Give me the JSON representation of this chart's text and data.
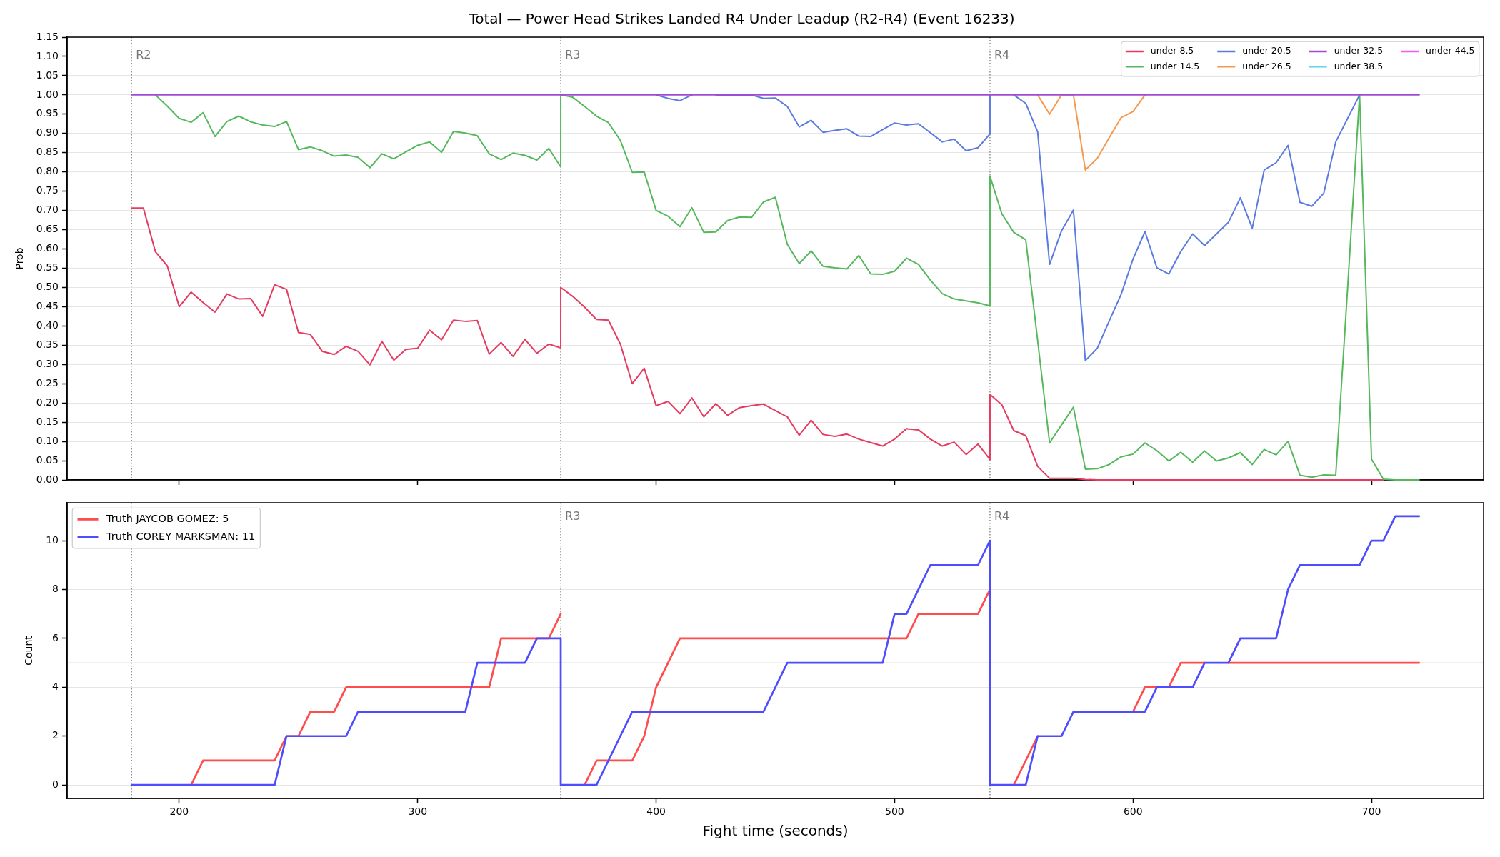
{
  "chart_data": [
    {
      "type": "line",
      "title": "Total — Power Head Strikes Landed R4 Under Leadup (R2-R4) (Event 16233)",
      "ylabel": "Prob",
      "x": [
        180,
        185,
        190,
        195,
        200,
        205,
        210,
        215,
        220,
        225,
        230,
        235,
        240,
        245,
        250,
        255,
        260,
        265,
        270,
        275,
        280,
        285,
        290,
        295,
        300,
        305,
        310,
        315,
        320,
        325,
        330,
        335,
        340,
        345,
        350,
        355,
        360,
        360,
        365,
        370,
        375,
        380,
        385,
        390,
        395,
        400,
        405,
        410,
        415,
        420,
        425,
        430,
        435,
        440,
        445,
        450,
        455,
        460,
        465,
        470,
        475,
        480,
        485,
        490,
        495,
        500,
        505,
        510,
        515,
        520,
        525,
        530,
        535,
        540,
        540,
        545,
        550,
        555,
        560,
        565,
        570,
        575,
        580,
        585,
        590,
        595,
        600,
        605,
        610,
        615,
        620,
        625,
        630,
        635,
        640,
        645,
        650,
        655,
        660,
        665,
        670,
        675,
        680,
        685,
        690,
        695,
        700,
        705,
        710,
        715,
        720
      ],
      "series": [
        {
          "name": "under 8.5",
          "color": "#e63b60",
          "values": [
            0.706,
            0.706,
            0.593,
            0.556,
            0.45,
            0.488,
            0.461,
            0.436,
            0.483,
            0.47,
            0.471,
            0.425,
            0.507,
            0.495,
            0.383,
            0.378,
            0.334,
            0.326,
            0.347,
            0.334,
            0.299,
            0.36,
            0.311,
            0.339,
            0.342,
            0.389,
            0.364,
            0.415,
            0.412,
            0.414,
            0.327,
            0.357,
            0.321,
            0.365,
            0.329,
            0.353,
            0.343,
            0.5,
            0.477,
            0.449,
            0.417,
            0.415,
            0.353,
            0.25,
            0.29,
            0.193,
            0.204,
            0.172,
            0.213,
            0.164,
            0.198,
            0.168,
            0.188,
            0.193,
            0.197,
            0.18,
            0.164,
            0.116,
            0.155,
            0.118,
            0.113,
            0.119,
            0.106,
            0.097,
            0.088,
            0.106,
            0.133,
            0.13,
            0.106,
            0.088,
            0.098,
            0.066,
            0.093,
            0.053,
            0.222,
            0.195,
            0.128,
            0.115,
            0.035,
            0.004,
            0.004,
            0.004,
            0.001,
            0,
            0,
            0,
            0,
            0,
            0,
            0,
            0,
            0,
            0,
            0,
            0,
            0,
            0,
            0,
            0,
            0,
            0,
            0,
            0,
            0,
            0,
            0,
            0,
            0,
            null,
            null,
            null
          ]
        },
        {
          "name": "under 14.5",
          "color": "#55b85c",
          "values": [
            null,
            null,
            1,
            0.971,
            0.939,
            0.929,
            0.954,
            0.892,
            0.931,
            0.945,
            0.93,
            0.922,
            0.918,
            0.931,
            0.858,
            0.865,
            0.855,
            0.841,
            0.844,
            0.838,
            0.811,
            0.847,
            0.834,
            0.852,
            0.869,
            0.878,
            0.851,
            0.905,
            0.901,
            0.894,
            0.847,
            0.832,
            0.849,
            0.843,
            0.831,
            0.861,
            0.813,
            1,
            0.994,
            0.97,
            0.945,
            0.928,
            0.882,
            0.799,
            0.8,
            0.7,
            0.685,
            0.658,
            0.707,
            0.643,
            0.644,
            0.674,
            0.683,
            0.682,
            0.722,
            0.734,
            0.612,
            0.562,
            0.595,
            0.555,
            0.551,
            0.548,
            0.583,
            0.535,
            0.534,
            0.542,
            0.576,
            0.56,
            0.519,
            0.484,
            0.47,
            0.465,
            0.46,
            0.452,
            0.789,
            0.691,
            0.643,
            0.624,
            0.362,
            0.096,
            0.143,
            0.189,
            0.028,
            0.029,
            0.04,
            0.06,
            0.067,
            0.096,
            0.076,
            0.049,
            0.072,
            0.046,
            0.075,
            0.049,
            0.057,
            0.071,
            0.04,
            0.079,
            0.065,
            0.1,
            0.012,
            0.007,
            0.013,
            0.012,
            0.5,
            1,
            0.054,
            0.002,
            0,
            0,
            0
          ]
        },
        {
          "name": "under 20.5",
          "color": "#5b7be0",
          "values": [
            null,
            null,
            null,
            null,
            null,
            null,
            null,
            null,
            null,
            null,
            null,
            null,
            null,
            null,
            null,
            null,
            null,
            null,
            null,
            null,
            null,
            null,
            null,
            null,
            null,
            null,
            null,
            null,
            null,
            null,
            null,
            null,
            null,
            null,
            null,
            null,
            null,
            null,
            null,
            null,
            null,
            null,
            null,
            null,
            null,
            1,
            0.991,
            0.985,
            1,
            null,
            1,
            0.998,
            0.998,
            1,
            0.991,
            0.992,
            0.97,
            0.917,
            0.934,
            0.903,
            0.908,
            0.912,
            0.893,
            0.892,
            0.91,
            0.927,
            0.922,
            0.925,
            0.902,
            0.878,
            0.885,
            0.855,
            0.863,
            0.899,
            1,
            null,
            1,
            0.978,
            0.904,
            0.56,
            0.647,
            0.701,
            0.31,
            0.342,
            0.413,
            0.482,
            0.574,
            0.645,
            0.551,
            0.535,
            0.593,
            0.639,
            0.609,
            0.639,
            0.669,
            0.733,
            0.654,
            0.805,
            0.824,
            0.869,
            0.721,
            0.711,
            0.745,
            0.878,
            0.939,
            1,
            null,
            null,
            null,
            null,
            null
          ]
        },
        {
          "name": "under 26.5",
          "color": "#f5994f",
          "values": [
            null,
            null,
            null,
            null,
            null,
            null,
            null,
            null,
            null,
            null,
            null,
            null,
            null,
            null,
            null,
            null,
            null,
            null,
            null,
            null,
            null,
            null,
            null,
            null,
            null,
            null,
            null,
            null,
            null,
            null,
            null,
            null,
            null,
            null,
            null,
            null,
            null,
            null,
            null,
            null,
            null,
            null,
            null,
            null,
            null,
            null,
            null,
            null,
            null,
            null,
            null,
            null,
            null,
            null,
            null,
            null,
            null,
            null,
            null,
            null,
            null,
            null,
            null,
            null,
            null,
            null,
            null,
            null,
            null,
            null,
            null,
            null,
            null,
            null,
            null,
            null,
            null,
            null,
            1,
            0.95,
            1,
            1,
            0.805,
            0.835,
            0.889,
            0.941,
            0.957,
            1,
            null,
            null,
            null,
            null,
            null,
            null,
            null,
            null,
            null,
            null,
            null,
            null,
            null,
            null,
            null,
            null,
            null,
            null,
            null,
            null,
            null,
            null,
            null
          ]
        },
        {
          "name": "under 32.5",
          "color": "#a04bd4",
          "values": [
            1,
            1,
            1,
            1,
            1,
            1,
            1,
            1,
            1,
            1,
            1,
            1,
            1,
            1,
            1,
            1,
            1,
            1,
            1,
            1,
            1,
            1,
            1,
            1,
            1,
            1,
            1,
            1,
            1,
            1,
            1,
            1,
            1,
            1,
            1,
            1,
            1,
            1,
            1,
            1,
            1,
            1,
            1,
            1,
            1,
            1,
            1,
            1,
            1,
            1,
            1,
            1,
            1,
            1,
            1,
            1,
            1,
            1,
            1,
            1,
            1,
            1,
            1,
            1,
            1,
            1,
            1,
            1,
            1,
            1,
            1,
            1,
            1,
            1,
            1,
            1,
            1,
            1,
            1,
            1,
            1,
            1,
            1,
            1,
            1,
            1,
            1,
            1,
            1,
            1,
            1,
            1,
            1,
            1,
            1,
            1,
            1,
            1,
            1,
            1,
            1,
            1,
            1,
            1,
            1,
            1,
            1,
            1,
            1,
            1,
            1
          ]
        },
        {
          "name": "under 38.5",
          "color": "#5fd3ef",
          "values": [
            null,
            null,
            null,
            null,
            null,
            null,
            null,
            null,
            null,
            null,
            null,
            null,
            null,
            null,
            null,
            null,
            null,
            null,
            null,
            null,
            null,
            null,
            null,
            null,
            null,
            null,
            null,
            null,
            null,
            null,
            null,
            null,
            null,
            null,
            null,
            null,
            null,
            null,
            null,
            null,
            null,
            null,
            null,
            null,
            null,
            null,
            null,
            null,
            null,
            null,
            null,
            null,
            null,
            null,
            null,
            null,
            null,
            null,
            null,
            null,
            null,
            null,
            null,
            null,
            null,
            null,
            null,
            null,
            null,
            null,
            null,
            null,
            null,
            null,
            null,
            null,
            null,
            null,
            null,
            null,
            null,
            null,
            null,
            null,
            null,
            null,
            null,
            null,
            null,
            null,
            null,
            null,
            null,
            null,
            null,
            null,
            null,
            null,
            null,
            null,
            null,
            null,
            null,
            null,
            null,
            null,
            null,
            null,
            null,
            null,
            null
          ]
        },
        {
          "name": "under 44.5",
          "color": "#f25cf0",
          "values": [
            null,
            null,
            null,
            null,
            null,
            null,
            null,
            null,
            null,
            null,
            null,
            null,
            null,
            null,
            null,
            null,
            null,
            null,
            null,
            null,
            null,
            null,
            null,
            null,
            null,
            null,
            null,
            null,
            null,
            null,
            null,
            null,
            null,
            null,
            null,
            null,
            null,
            null,
            null,
            null,
            null,
            null,
            null,
            null,
            null,
            null,
            null,
            null,
            null,
            null,
            null,
            null,
            null,
            null,
            null,
            null,
            null,
            null,
            null,
            null,
            null,
            null,
            null,
            null,
            null,
            null,
            null,
            null,
            null,
            null,
            null,
            null,
            null,
            null,
            null,
            null,
            null,
            null,
            null,
            null,
            null,
            null,
            null,
            null,
            null,
            null,
            null,
            null,
            null,
            null,
            null,
            null,
            null,
            null,
            null,
            null,
            null,
            null,
            null,
            null,
            null,
            null,
            null,
            null,
            null,
            null,
            null,
            null,
            null,
            null,
            null
          ]
        }
      ],
      "xlim": [
        153,
        747
      ],
      "xticks": [
        200,
        300,
        400,
        500,
        600,
        700
      ],
      "ylim": [
        0,
        1.15
      ],
      "yticks": [
        {
          "value": 0,
          "label": "0.00"
        },
        {
          "value": 0.05,
          "label": "0.05"
        },
        {
          "value": 0.1,
          "label": "0.10"
        },
        {
          "value": 0.15,
          "label": "0.15"
        },
        {
          "value": 0.2,
          "label": "0.20"
        },
        {
          "value": 0.25,
          "label": "0.25"
        },
        {
          "value": 0.3,
          "label": "0.30"
        },
        {
          "value": 0.35,
          "label": "0.35"
        },
        {
          "value": 0.4,
          "label": "0.40"
        },
        {
          "value": 0.45,
          "label": "0.45"
        },
        {
          "value": 0.5,
          "label": "0.50"
        },
        {
          "value": 0.55,
          "label": "0.55"
        },
        {
          "value": 0.6,
          "label": "0.60"
        },
        {
          "value": 0.65,
          "label": "0.65"
        },
        {
          "value": 0.7,
          "label": "0.70"
        },
        {
          "value": 0.75,
          "label": "0.75"
        },
        {
          "value": 0.8,
          "label": "0.80"
        },
        {
          "value": 0.85,
          "label": "0.85"
        },
        {
          "value": 0.9,
          "label": "0.90"
        },
        {
          "value": 0.95,
          "label": "0.95"
        },
        {
          "value": 1,
          "label": "1.00"
        },
        {
          "value": 1.05,
          "label": "1.05"
        },
        {
          "value": 1.1,
          "label": "1.10"
        },
        {
          "value": 1.15,
          "label": "1.15"
        }
      ],
      "grid": "y",
      "legend": "top right",
      "tick_labels": "y",
      "ref_lines": [
        {
          "axis": "x",
          "value": 180,
          "label": "R2",
          "color": "#777777",
          "line_style": "dotted"
        },
        {
          "axis": "x",
          "value": 360,
          "label": "R3",
          "color": "#777777",
          "line_style": "dotted"
        },
        {
          "axis": "x",
          "value": 540,
          "label": "R4",
          "color": "#777777",
          "line_style": "dotted"
        }
      ]
    },
    {
      "type": "line",
      "xlabel": "Fight time (seconds)",
      "ylabel": "Count",
      "x": [
        180,
        185,
        190,
        195,
        200,
        205,
        210,
        215,
        220,
        225,
        230,
        235,
        240,
        245,
        250,
        255,
        260,
        265,
        270,
        275,
        280,
        285,
        290,
        295,
        300,
        305,
        310,
        315,
        320,
        325,
        330,
        335,
        340,
        345,
        350,
        355,
        360,
        360,
        365,
        370,
        375,
        380,
        385,
        390,
        395,
        400,
        405,
        410,
        415,
        420,
        425,
        430,
        435,
        440,
        445,
        450,
        455,
        460,
        465,
        470,
        475,
        480,
        485,
        490,
        495,
        500,
        505,
        510,
        515,
        520,
        525,
        530,
        535,
        540,
        540,
        545,
        550,
        555,
        560,
        565,
        570,
        575,
        580,
        585,
        590,
        595,
        600,
        605,
        610,
        615,
        620,
        625,
        630,
        635,
        640,
        645,
        650,
        655,
        660,
        665,
        670,
        675,
        680,
        685,
        690,
        695,
        700,
        705,
        710,
        715,
        720
      ],
      "series": [
        {
          "name": "Truth JAYCOB GOMEZ: 5",
          "color": "#ff4d4d",
          "values": [
            null,
            null,
            null,
            null,
            null,
            0,
            1,
            1,
            1,
            1,
            1,
            1,
            1,
            2,
            2,
            3,
            3,
            3,
            4,
            4,
            4,
            4,
            4,
            4,
            4,
            4,
            4,
            4,
            4,
            4,
            4,
            6,
            6,
            6,
            6,
            6,
            7,
            null,
            null,
            0,
            1,
            1,
            1,
            1,
            2,
            4,
            5,
            6,
            6,
            6,
            6,
            6,
            6,
            6,
            6,
            6,
            6,
            6,
            6,
            6,
            6,
            6,
            6,
            6,
            6,
            6,
            6,
            7,
            7,
            7,
            7,
            7,
            7,
            8,
            null,
            null,
            0,
            1,
            2,
            null,
            null,
            null,
            null,
            null,
            null,
            null,
            3,
            4,
            4,
            4,
            5,
            5,
            5,
            null,
            5,
            5,
            5,
            5,
            5,
            5,
            5,
            5,
            5,
            5,
            5,
            5,
            5,
            5,
            5,
            5,
            5
          ]
        },
        {
          "name": "Truth COREY MARKSMAN: 11",
          "color": "#4d4dff",
          "values": [
            0,
            0,
            0,
            0,
            0,
            0,
            0,
            0,
            0,
            0,
            0,
            0,
            0,
            2,
            2,
            2,
            2,
            2,
            2,
            3,
            3,
            3,
            3,
            3,
            3,
            3,
            3,
            3,
            3,
            5,
            5,
            5,
            5,
            5,
            6,
            6,
            6,
            0,
            0,
            0,
            0,
            1,
            2,
            3,
            3,
            3,
            3,
            3,
            3,
            3,
            3,
            3,
            3,
            3,
            3,
            4,
            5,
            5,
            5,
            5,
            5,
            5,
            5,
            5,
            5,
            7,
            7,
            8,
            9,
            9,
            9,
            9,
            9,
            10,
            0,
            0,
            0,
            0,
            2,
            2,
            2,
            3,
            3,
            3,
            3,
            3,
            3,
            3,
            4,
            4,
            4,
            4,
            5,
            5,
            5,
            6,
            6,
            6,
            6,
            8,
            9,
            9,
            9,
            9,
            9,
            9,
            10,
            10,
            11,
            11,
            11
          ]
        }
      ],
      "xlim": [
        153,
        747
      ],
      "xticks": [
        200,
        300,
        400,
        500,
        600,
        700
      ],
      "ylim": [
        -0.55,
        11.55
      ],
      "yticks": [
        0,
        2,
        4,
        6,
        8,
        10
      ],
      "grid": "y",
      "legend": "top left",
      "ref_lines": [
        {
          "axis": "x",
          "value": 180,
          "color": "#777777",
          "line_style": "dotted"
        },
        {
          "axis": "x",
          "value": 360,
          "label": "R3",
          "color": "#777777",
          "line_style": "dotted"
        },
        {
          "axis": "x",
          "value": 540,
          "label": "R4",
          "color": "#777777",
          "line_style": "dotted"
        },
        {
          "axis": "y",
          "value": 5,
          "color": "#e0e0e0",
          "line_style": "solid"
        }
      ]
    }
  ]
}
